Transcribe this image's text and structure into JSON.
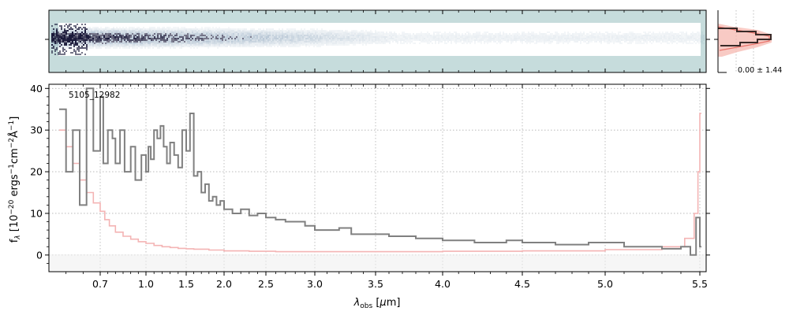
{
  "chart_data": [
    {
      "panel": "spectrum-2d",
      "type": "heatmap",
      "colors": {
        "background": "#c6dcdc",
        "trace_dark": "#1a1a3a",
        "trace_mid": "#7f9ab4",
        "band": "#ffffff"
      }
    },
    {
      "panel": "profile",
      "type": "line",
      "annotation": "0.00 ± 1.44",
      "colors": {
        "profile_line": "#3a2a28",
        "model_fill": "#f6b8b0",
        "model_line": "#e8726a"
      }
    },
    {
      "panel": "spectrum-1d",
      "type": "line",
      "title": "",
      "xlabel": "λ_obs [μm]",
      "ylabel": "f_λ [10^−20 ergs^−1 cm^−2 Å^−1]",
      "annotation": "5105_12982",
      "x_scale": "custom-compressed-wavelength",
      "xlim": [
        0.55,
        5.52
      ],
      "ylim": [
        -4,
        41
      ],
      "x_ticks": [
        0.7,
        1.0,
        1.5,
        2.0,
        2.5,
        3.0,
        3.5,
        4.0,
        4.5,
        5.0,
        5.5
      ],
      "x_tick_labels": [
        "0.7",
        "1.0",
        "1.5",
        "2.0",
        "2.5",
        "3.0",
        "3.5",
        "4.0",
        "4.5",
        "5.0",
        "5.5"
      ],
      "y_ticks": [
        0,
        10,
        20,
        30,
        40
      ],
      "y_tick_labels": [
        "0",
        "10",
        "20",
        "30",
        "40"
      ],
      "grid": true,
      "series": [
        {
          "role": "flux",
          "color": "#808080",
          "x": [
            0.58,
            0.6,
            0.62,
            0.64,
            0.66,
            0.68,
            0.7,
            0.72,
            0.75,
            0.78,
            0.8,
            0.83,
            0.86,
            0.9,
            0.93,
            0.97,
            1.0,
            1.03,
            1.06,
            1.1,
            1.14,
            1.18,
            1.22,
            1.26,
            1.3,
            1.35,
            1.4,
            1.45,
            1.5,
            1.55,
            1.6,
            1.65,
            1.7,
            1.75,
            1.8,
            1.85,
            1.9,
            1.95,
            2.0,
            2.1,
            2.2,
            2.3,
            2.4,
            2.5,
            2.6,
            2.7,
            2.8,
            2.9,
            3.0,
            3.1,
            3.2,
            3.3,
            3.4,
            3.5,
            3.6,
            3.7,
            3.8,
            3.9,
            4.0,
            4.1,
            4.2,
            4.3,
            4.4,
            4.5,
            4.6,
            4.7,
            4.8,
            4.9,
            5.0,
            5.1,
            5.2,
            5.3,
            5.4,
            5.45,
            5.48,
            5.5
          ],
          "y": [
            35,
            20,
            30,
            12,
            40,
            25,
            38,
            22,
            30,
            28,
            22,
            30,
            20,
            26,
            18,
            24,
            20,
            26,
            23,
            30,
            28,
            31,
            26,
            22,
            27,
            24,
            21,
            30,
            25,
            34,
            19,
            20,
            15,
            17,
            13,
            14,
            12,
            13,
            11,
            10,
            11,
            9.5,
            10,
            9,
            8.5,
            8,
            8,
            7,
            6,
            6,
            6.5,
            5,
            5,
            5,
            4.5,
            4.5,
            4,
            4,
            3.5,
            3.5,
            3,
            3,
            3.5,
            3,
            3,
            2.5,
            2.5,
            3,
            3,
            2,
            2,
            1.5,
            2,
            0,
            9,
            2
          ]
        },
        {
          "role": "error",
          "color": "#f4b4b4",
          "x": [
            0.58,
            0.6,
            0.62,
            0.64,
            0.66,
            0.68,
            0.7,
            0.73,
            0.76,
            0.8,
            0.85,
            0.9,
            0.95,
            1.0,
            1.1,
            1.2,
            1.3,
            1.4,
            1.5,
            1.6,
            1.8,
            2.0,
            2.3,
            2.6,
            3.0,
            3.5,
            4.0,
            4.5,
            5.0,
            5.3,
            5.42,
            5.47,
            5.49,
            5.5
          ],
          "y": [
            30,
            26,
            22,
            18,
            15,
            12.5,
            10.5,
            8.5,
            7,
            5.5,
            4.5,
            3.8,
            3.2,
            2.8,
            2.3,
            2,
            1.8,
            1.6,
            1.5,
            1.4,
            1.2,
            1.0,
            0.9,
            0.8,
            0.8,
            0.8,
            0.9,
            1.0,
            1.3,
            2.0,
            4,
            10,
            20,
            34
          ]
        }
      ]
    }
  ]
}
